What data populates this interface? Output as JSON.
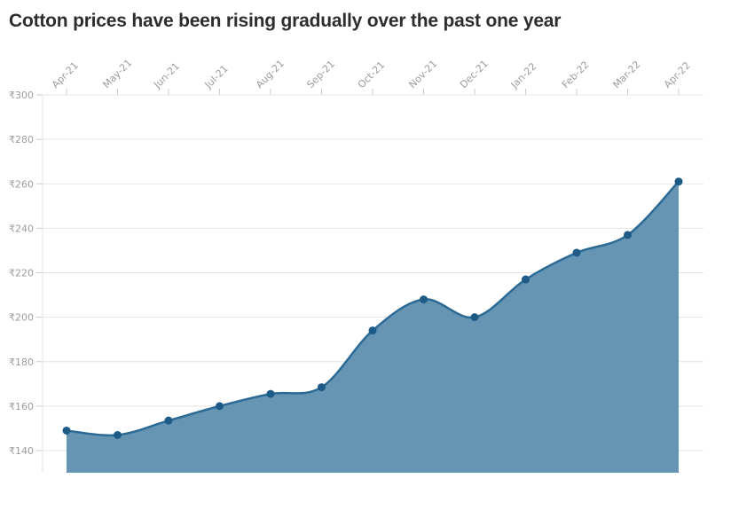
{
  "header": {
    "title": "Cotton prices have been rising gradually over the past one year"
  },
  "chart_data": {
    "type": "area",
    "title": "Cotton prices have been rising gradually over the past one year",
    "x": [
      "Apr-21",
      "May-21",
      "Jun-21",
      "Jul-21",
      "Aug-21",
      "Sep-21",
      "Oct-21",
      "Nov-21",
      "Dec-21",
      "Jan-22",
      "Feb-22",
      "Mar-22",
      "Apr-22"
    ],
    "values": [
      149,
      147,
      153.5,
      160,
      165.5,
      168.5,
      194,
      208,
      200,
      217,
      229,
      237,
      261
    ],
    "currency_prefix": "₹",
    "ylim": [
      140,
      300
    ],
    "yticks": [
      300,
      280,
      260,
      240,
      220,
      200,
      180,
      160,
      140
    ],
    "ytick_labels": [
      "₹300",
      "₹280",
      "₹260",
      "₹240",
      "₹220",
      "₹200",
      "₹180",
      "₹160",
      "₹140"
    ],
    "xlabel": "",
    "ylabel": "",
    "grid": true,
    "legend": false,
    "x_axis_position": "top",
    "colors": {
      "area_fill": "#6695b3",
      "line": "#2b6a94",
      "point": "#1d5a86",
      "grid": "#e4e4e4",
      "tick": "#cccccc",
      "axis_label": "#9c9c9c",
      "title": "#2d2d2d"
    }
  }
}
